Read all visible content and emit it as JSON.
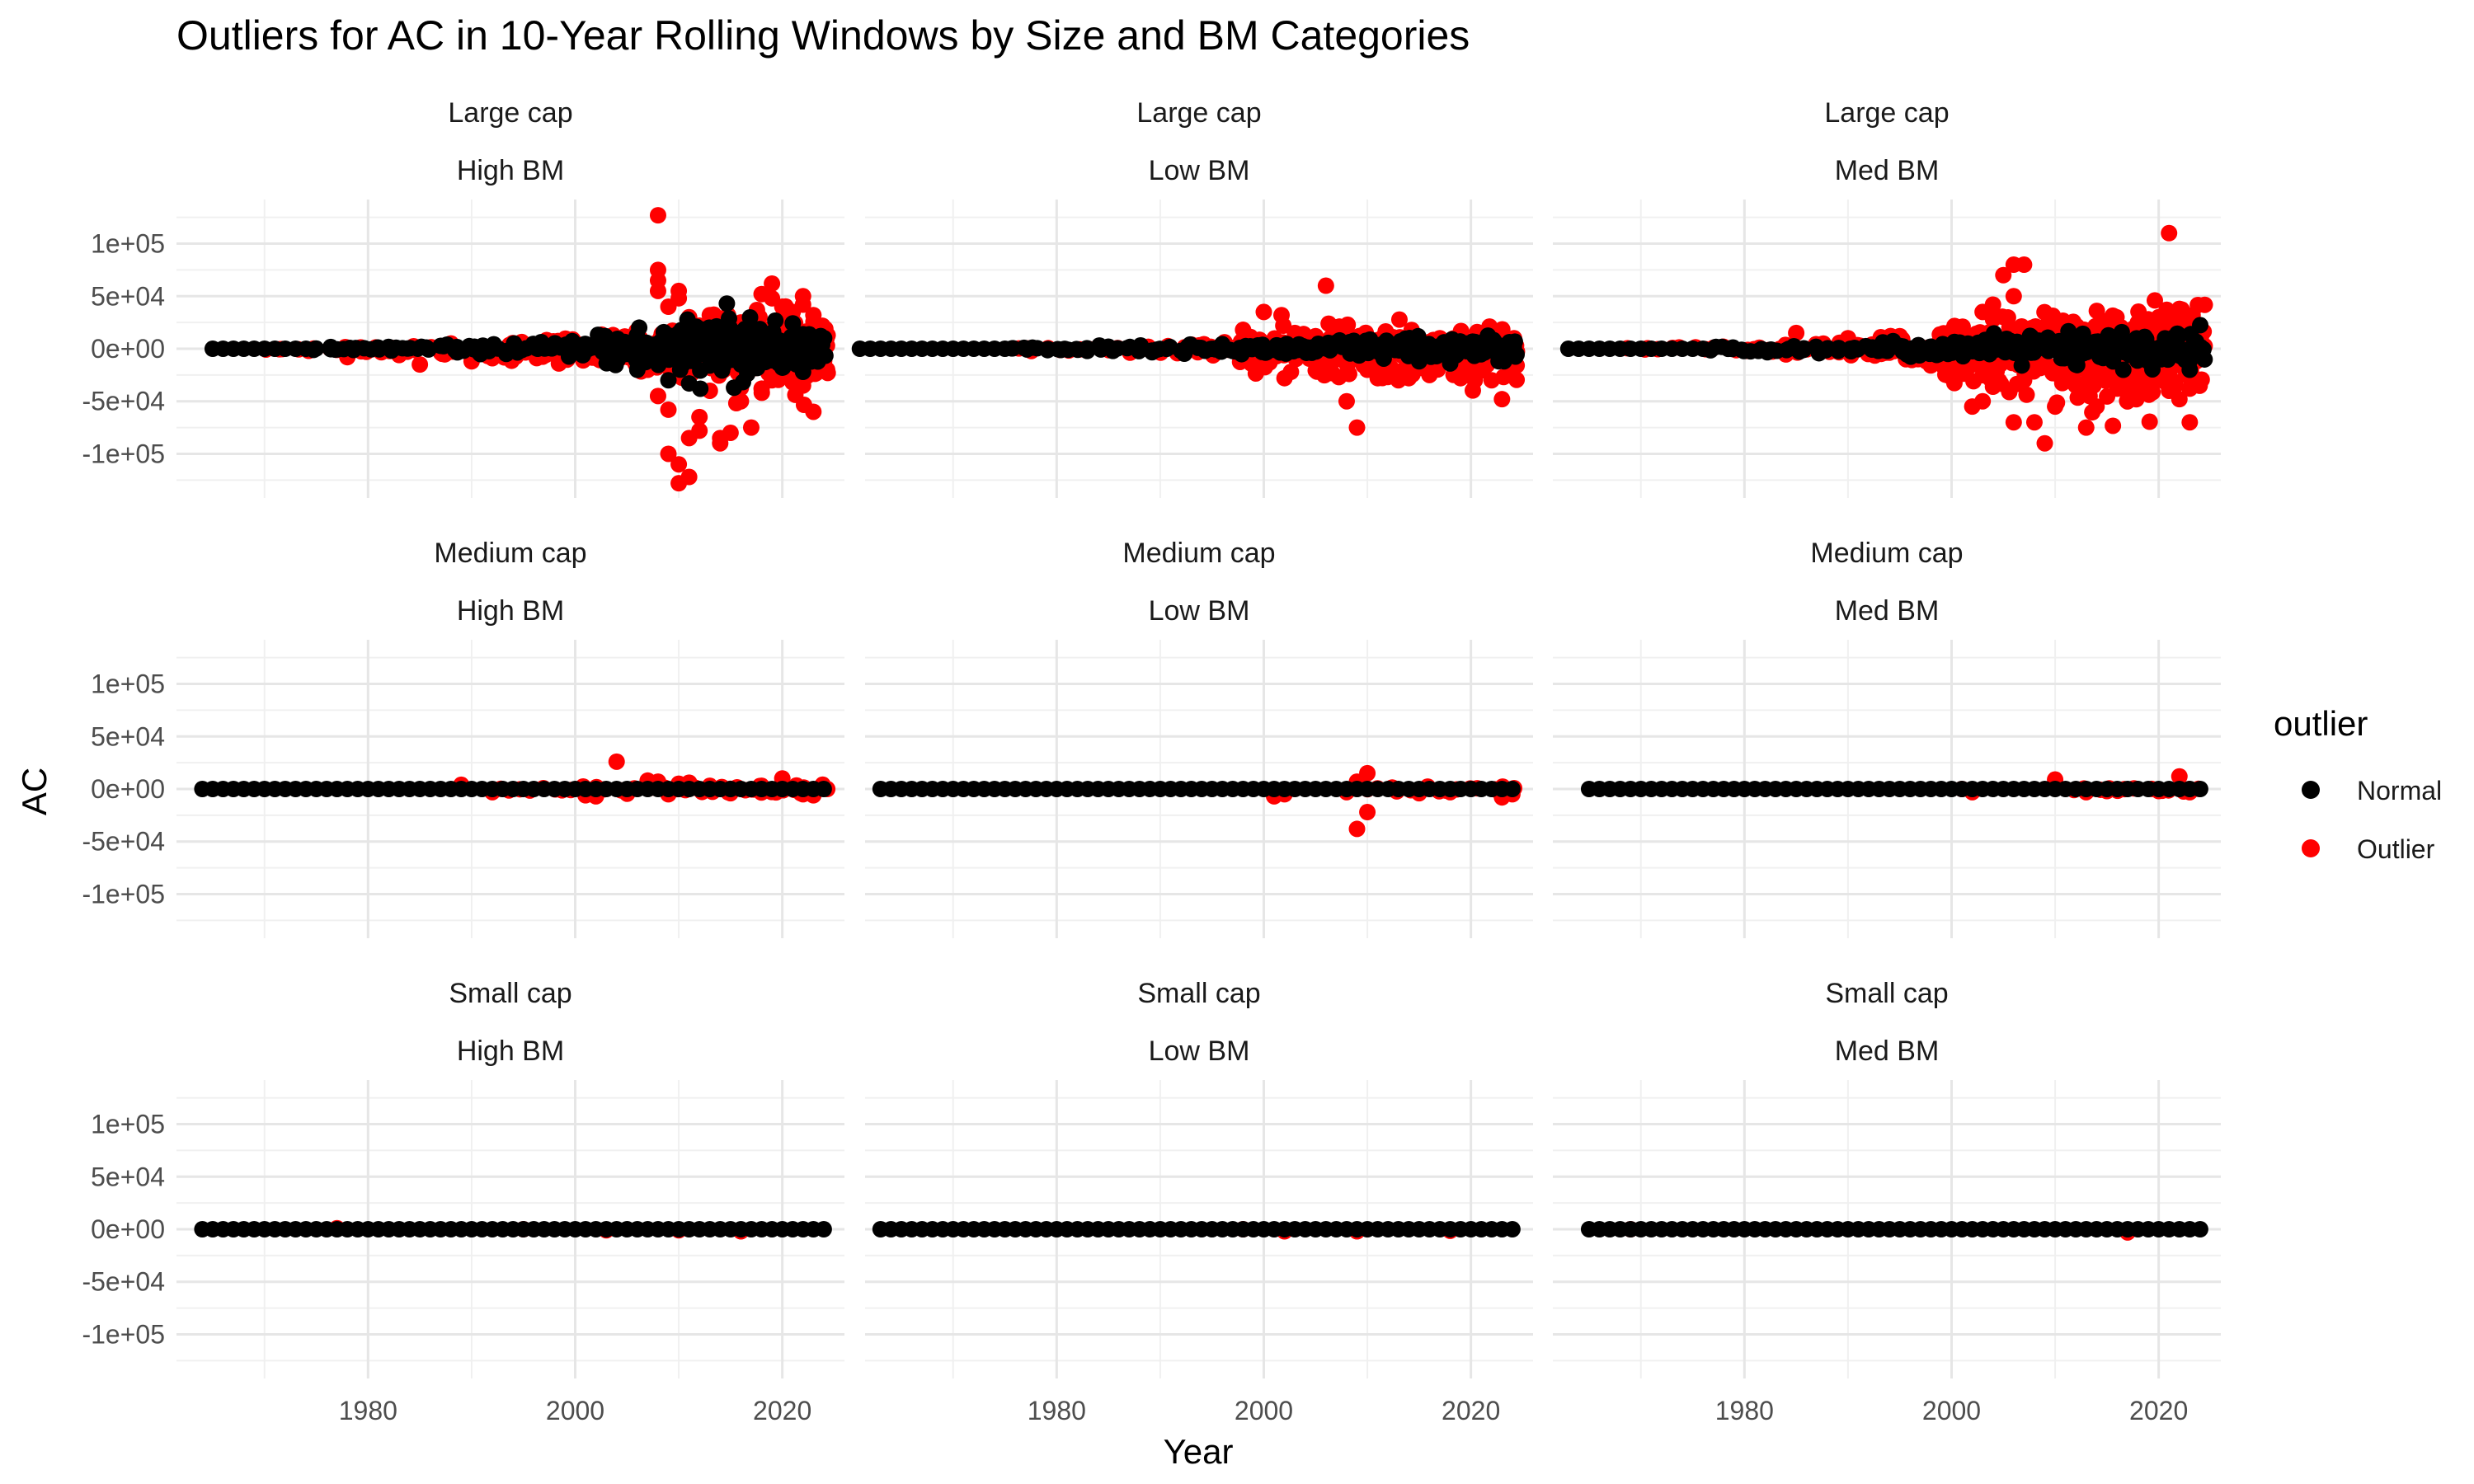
{
  "chart_data": {
    "type": "scatter",
    "title": "Outliers for AC in 10-Year Rolling Windows by Size and BM Categories",
    "xlabel": "Year",
    "ylabel": "AC",
    "x_ticks": [
      1980,
      2000,
      2020
    ],
    "y_ticks": [
      100000,
      50000,
      0,
      -50000,
      -100000
    ],
    "y_tick_labels": [
      "1e+05",
      "5e+04",
      "0e+00",
      "-5e+04",
      "-1e+05"
    ],
    "legend": {
      "title": "outlier",
      "position": "right",
      "entries": [
        {
          "label": "Normal",
          "color": "#000000"
        },
        {
          "label": "Outlier",
          "color": "#ff0000"
        }
      ]
    },
    "grid": true,
    "panels": [
      {
        "size": "Large cap",
        "bm": "High BM",
        "x_range": [
          1965,
          2024
        ],
        "normal_band": [
          [
            1965,
            1,
            1
          ],
          [
            1985,
            2,
            3
          ],
          [
            2000,
            4,
            6
          ],
          [
            2003,
            7,
            15
          ],
          [
            2008,
            10,
            25
          ],
          [
            2015,
            12,
            28
          ],
          [
            2024,
            8,
            15
          ]
        ],
        "normal_extra": [
          [
            2009,
            -30000
          ],
          [
            2011,
            -33000
          ],
          [
            2022,
            -22000
          ],
          [
            2016,
            -15000
          ],
          [
            2013,
            -16000
          ],
          [
            2019,
            10000
          ],
          [
            2006,
            -20000
          ],
          [
            2020,
            -18000
          ]
        ],
        "outliers": [
          [
            2008,
            127000
          ],
          [
            2008,
            75000
          ],
          [
            2008,
            65000
          ],
          [
            2008,
            55000
          ],
          [
            2009,
            40000
          ],
          [
            2010,
            55000
          ],
          [
            2010,
            48000
          ],
          [
            2011,
            30000
          ],
          [
            2012,
            22000
          ],
          [
            2013,
            32000
          ],
          [
            2014,
            20000
          ],
          [
            2015,
            18000
          ],
          [
            2016,
            25000
          ],
          [
            2017,
            22000
          ],
          [
            2018,
            52000
          ],
          [
            2019,
            62000
          ],
          [
            2019,
            48000
          ],
          [
            2020,
            40000
          ],
          [
            2020,
            30000
          ],
          [
            2021,
            35000
          ],
          [
            2022,
            50000
          ],
          [
            2022,
            42000
          ],
          [
            2023,
            32000
          ],
          [
            2008,
            -45000
          ],
          [
            2009,
            -58000
          ],
          [
            2009,
            -100000
          ],
          [
            2010,
            -128000
          ],
          [
            2010,
            -110000
          ],
          [
            2011,
            -122000
          ],
          [
            2011,
            -85000
          ],
          [
            2012,
            -78000
          ],
          [
            2012,
            -65000
          ],
          [
            2013,
            -40000
          ],
          [
            2014,
            -85000
          ],
          [
            2014,
            -90000
          ],
          [
            2015,
            -80000
          ],
          [
            2016,
            -50000
          ],
          [
            2017,
            -75000
          ],
          [
            2018,
            -38000
          ],
          [
            2019,
            -30000
          ],
          [
            2020,
            -25000
          ],
          [
            2021,
            -32000
          ],
          [
            2022,
            -35000
          ],
          [
            2023,
            -60000
          ],
          [
            2004,
            -12000
          ],
          [
            2003,
            -10000
          ],
          [
            2006,
            15000
          ],
          [
            2007,
            -20000
          ],
          [
            1978,
            -8000
          ],
          [
            1983,
            -6000
          ],
          [
            1988,
            5000
          ],
          [
            1992,
            -9000
          ],
          [
            1997,
            5000
          ],
          [
            1985,
            -15000
          ],
          [
            1990,
            -12000
          ]
        ],
        "outlier_band": [
          [
            1965,
            0,
            0
          ],
          [
            1975,
            1,
            2
          ],
          [
            1990,
            3,
            5
          ],
          [
            2003,
            8,
            12
          ],
          [
            2024,
            15,
            30
          ]
        ]
      },
      {
        "size": "Large cap",
        "bm": "Low BM",
        "x_range": [
          1961,
          2024
        ],
        "normal_band": [
          [
            1961,
            1,
            1
          ],
          [
            1990,
            2,
            3
          ],
          [
            2000,
            4,
            6
          ],
          [
            2010,
            6,
            10
          ],
          [
            2024,
            8,
            12
          ]
        ],
        "normal_extra": [
          [
            2015,
            -12000
          ],
          [
            2018,
            -14000
          ],
          [
            2023,
            -9000
          ]
        ],
        "outliers": [
          [
            2006,
            60000
          ],
          [
            2000,
            35000
          ],
          [
            2008,
            -50000
          ],
          [
            2009,
            -75000
          ],
          [
            2002,
            -28000
          ],
          [
            2013,
            -30000
          ],
          [
            2014,
            -28000
          ],
          [
            2016,
            -25000
          ],
          [
            2019,
            -28000
          ],
          [
            2022,
            -30000
          ],
          [
            2023,
            -48000
          ],
          [
            2024,
            -17000
          ],
          [
            1998,
            18000
          ],
          [
            2003,
            15000
          ],
          [
            2010,
            -20000
          ],
          [
            2020,
            -22000
          ],
          [
            2011,
            -28000
          ],
          [
            1999,
            -12000
          ],
          [
            2005,
            12000
          ],
          [
            2017,
            10000
          ],
          [
            2021,
            8000
          ],
          [
            2007,
            -10000
          ]
        ],
        "outlier_band": [
          [
            1961,
            0,
            0
          ],
          [
            1990,
            1,
            3
          ],
          [
            1997,
            4,
            8
          ],
          [
            2000,
            8,
            18
          ],
          [
            2024,
            10,
            22
          ]
        ]
      },
      {
        "size": "Large cap",
        "bm": "Med BM",
        "x_range": [
          1963,
          2024
        ],
        "normal_band": [
          [
            1963,
            1,
            1
          ],
          [
            1990,
            2,
            4
          ],
          [
            2000,
            5,
            8
          ],
          [
            2010,
            8,
            15
          ],
          [
            2024,
            8,
            18
          ]
        ],
        "normal_extra": [
          [
            2023,
            -20000
          ],
          [
            2012,
            -15000
          ],
          [
            2019,
            -12000
          ]
        ],
        "outliers": [
          [
            2021,
            110000
          ],
          [
            2006,
            80000
          ],
          [
            2007,
            80000
          ],
          [
            2005,
            70000
          ],
          [
            2006,
            50000
          ],
          [
            2004,
            42000
          ],
          [
            2003,
            35000
          ],
          [
            2004,
            28000
          ],
          [
            2003,
            -50000
          ],
          [
            2002,
            -55000
          ],
          [
            2006,
            -70000
          ],
          [
            2008,
            -70000
          ],
          [
            2009,
            -90000
          ],
          [
            2010,
            -55000
          ],
          [
            2013,
            -75000
          ],
          [
            2014,
            -55000
          ],
          [
            2022,
            -48000
          ],
          [
            2023,
            -70000
          ],
          [
            2021,
            -40000
          ],
          [
            2023,
            -38000
          ],
          [
            2007,
            -30000
          ],
          [
            2018,
            25000
          ],
          [
            2019,
            28000
          ],
          [
            2020,
            30000
          ],
          [
            2022,
            38000
          ],
          [
            2015,
            20000
          ],
          [
            2012,
            -35000
          ],
          [
            2016,
            -38000
          ],
          [
            2000,
            15000
          ],
          [
            1985,
            15000
          ],
          [
            1990,
            10000
          ],
          [
            1995,
            12000
          ],
          [
            1998,
            -10000
          ]
        ],
        "outlier_band": [
          [
            1963,
            0,
            0
          ],
          [
            1975,
            1,
            2
          ],
          [
            1990,
            3,
            6
          ],
          [
            1998,
            8,
            14
          ],
          [
            2002,
            12,
            24
          ],
          [
            2024,
            18,
            40
          ]
        ]
      },
      {
        "size": "Medium cap",
        "bm": "High BM",
        "x_range": [
          1964,
          2024
        ],
        "normal_band": [
          [
            1964,
            1,
            1
          ],
          [
            2024,
            1,
            2
          ]
        ],
        "normal_extra": [],
        "outliers": [
          [
            2004,
            26000
          ],
          [
            2007,
            8000
          ],
          [
            2008,
            7000
          ],
          [
            2010,
            5000
          ],
          [
            2011,
            6000
          ],
          [
            2020,
            10000
          ],
          [
            2001,
            -6000
          ],
          [
            2002,
            -7000
          ],
          [
            2009,
            -5000
          ],
          [
            2015,
            -4000
          ],
          [
            2022,
            -5000
          ],
          [
            2023,
            -6000
          ],
          [
            1989,
            4000
          ],
          [
            1992,
            -3000
          ],
          [
            2018,
            3000
          ],
          [
            2013,
            3000
          ]
        ],
        "outlier_band": [
          [
            1964,
            0,
            0
          ],
          [
            1985,
            0,
            1
          ],
          [
            2000,
            1,
            3
          ],
          [
            2024,
            2,
            4
          ]
        ]
      },
      {
        "size": "Medium cap",
        "bm": "Low BM",
        "x_range": [
          1963,
          2024
        ],
        "normal_band": [
          [
            1963,
            1,
            1
          ],
          [
            2024,
            1,
            2
          ]
        ],
        "normal_extra": [],
        "outliers": [
          [
            2010,
            15000
          ],
          [
            2009,
            7000
          ],
          [
            2010,
            -22000
          ],
          [
            2009,
            -38000
          ],
          [
            2001,
            -7000
          ],
          [
            2002,
            -5000
          ],
          [
            2015,
            -4000
          ],
          [
            2023,
            -8000
          ],
          [
            2024,
            -5000
          ],
          [
            2008,
            -3000
          ],
          [
            2018,
            -3000
          ]
        ],
        "outlier_band": [
          [
            1963,
            0,
            0
          ],
          [
            1995,
            0,
            1
          ],
          [
            2024,
            1,
            3
          ]
        ]
      },
      {
        "size": "Medium cap",
        "bm": "Med BM",
        "x_range": [
          1965,
          2024
        ],
        "normal_band": [
          [
            1965,
            1,
            1
          ],
          [
            2024,
            1,
            2
          ]
        ],
        "normal_extra": [],
        "outliers": [
          [
            2010,
            9000
          ],
          [
            2022,
            12000
          ],
          [
            2001,
            0
          ],
          [
            2002,
            -3000
          ],
          [
            2013,
            -3000
          ],
          [
            2015,
            -2000
          ],
          [
            2020,
            -2000
          ],
          [
            2023,
            -3000
          ]
        ],
        "outlier_band": [
          [
            1965,
            0,
            0
          ],
          [
            2000,
            0,
            1
          ],
          [
            2024,
            1,
            2
          ]
        ]
      },
      {
        "size": "Small cap",
        "bm": "High BM",
        "x_range": [
          1964,
          2024
        ],
        "normal_band": [
          [
            1964,
            1,
            1
          ],
          [
            2024,
            1,
            1
          ]
        ],
        "normal_extra": [],
        "outliers": [
          [
            1995,
            0
          ],
          [
            2016,
            -2000
          ],
          [
            1977,
            1000
          ],
          [
            2003,
            -1000
          ],
          [
            2010,
            -1000
          ]
        ],
        "outlier_band": [
          [
            1964,
            0,
            0
          ],
          [
            2024,
            0,
            1
          ]
        ]
      },
      {
        "size": "Small cap",
        "bm": "Low BM",
        "x_range": [
          1963,
          2024
        ],
        "normal_band": [
          [
            1963,
            1,
            1
          ],
          [
            2024,
            1,
            1
          ]
        ],
        "normal_extra": [],
        "outliers": [
          [
            1998,
            0
          ],
          [
            2002,
            -2000
          ],
          [
            2009,
            -2000
          ],
          [
            2018,
            -1500
          ]
        ],
        "outlier_band": [
          [
            1963,
            0,
            0
          ],
          [
            2024,
            0,
            1
          ]
        ]
      },
      {
        "size": "Small cap",
        "bm": "Med BM",
        "x_range": [
          1965,
          2024
        ],
        "normal_band": [
          [
            1965,
            1,
            1
          ],
          [
            2024,
            1,
            1
          ]
        ],
        "normal_extra": [],
        "outliers": [
          [
            1969,
            0
          ],
          [
            2017,
            -3000
          ]
        ],
        "outlier_band": [
          [
            1965,
            0,
            0
          ],
          [
            2024,
            0,
            0
          ]
        ]
      }
    ]
  }
}
